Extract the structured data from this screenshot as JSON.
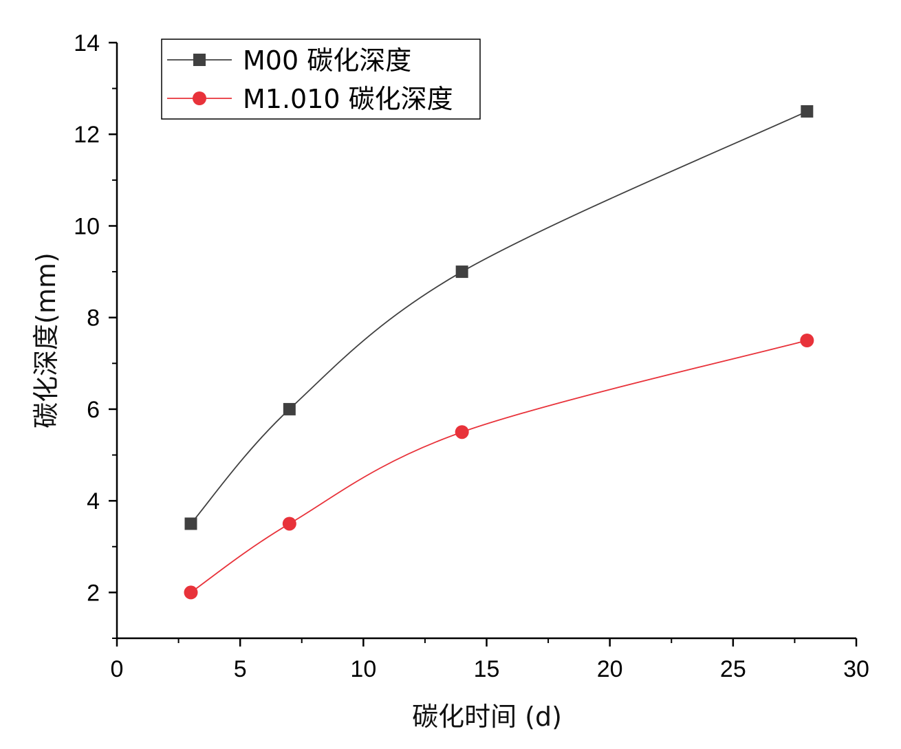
{
  "chart_data": {
    "type": "line",
    "title": "",
    "xlabel": "碳化时间 (d)",
    "ylabel": "碳化深度(mm)",
    "xlim": [
      0,
      30
    ],
    "ylim": [
      1,
      14
    ],
    "xticks": [
      0,
      5,
      10,
      15,
      20,
      25,
      30
    ],
    "yticks": [
      2,
      4,
      6,
      8,
      10,
      12,
      14
    ],
    "x": [
      3,
      7,
      14,
      28
    ],
    "legend_position": "top-left",
    "grid": false,
    "series": [
      {
        "name": "M00 碳化深度",
        "values": [
          3.5,
          6.0,
          9.0,
          12.5
        ],
        "color": "#404040",
        "marker": "square"
      },
      {
        "name": "M1.010 碳化深度",
        "values": [
          2.0,
          3.5,
          5.5,
          7.5
        ],
        "color": "#e8323a",
        "marker": "circle"
      }
    ]
  }
}
